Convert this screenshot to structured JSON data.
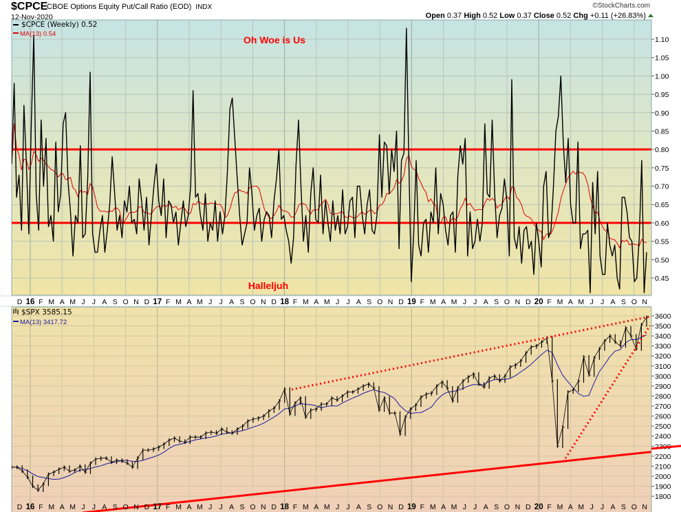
{
  "header": {
    "symbol": "$CPCE",
    "name": "CBOE Options Equity Put/Call Ratio (EOD)",
    "exchange": "INDX",
    "date": "12-Nov-2020",
    "watermark": "©StockCharts.com",
    "open_label": "Open",
    "open": "0.37",
    "high_label": "High",
    "high": "0.52",
    "low_label": "Low",
    "low": "0.37",
    "close_label": "Close",
    "close": "0.52",
    "chg_label": "Chg",
    "chg": "+0.11 (+26.83%)"
  },
  "colors": {
    "price": "#000000",
    "ma_top": "#e00000",
    "ma_bottom": "#1a1aa0",
    "annotation": "#ff0000"
  },
  "chart_data": [
    {
      "type": "line",
      "title": "$CPCE (Weekly)",
      "legend": [
        "$CPCE (Weekly) 0.52",
        "MA(13) 0.54"
      ],
      "annotations": [
        "Oh Woe is Us",
        "Halleljuh"
      ],
      "horizontal_lines": [
        0.8,
        0.6
      ],
      "ylim": [
        0.4,
        1.14
      ],
      "yticks": [
        "0.45",
        "0.50",
        "0.55",
        "0.60",
        "0.65",
        "0.70",
        "0.75",
        "0.80",
        "0.85",
        "0.90",
        "0.95",
        "1.00",
        "1.05",
        "1.10"
      ],
      "ma_period": 13,
      "series": [
        {
          "name": "$CPCE",
          "values": [
            0.76,
            0.98,
            0.67,
            0.73,
            0.58,
            0.92,
            0.76,
            0.57,
            0.87,
            1.11,
            0.68,
            0.58,
            0.88,
            0.7,
            0.83,
            0.59,
            0.62,
            0.55,
            0.82,
            0.63,
            0.68,
            0.87,
            0.9,
            0.71,
            0.63,
            0.51,
            0.62,
            0.6,
            0.81,
            0.56,
            0.57,
            0.72,
            1.01,
            0.57,
            0.52,
            0.52,
            0.58,
            0.62,
            0.52,
            0.58,
            0.65,
            0.78,
            0.68,
            0.58,
            0.62,
            0.56,
            0.66,
            0.63,
            0.7,
            0.6,
            0.61,
            0.57,
            0.72,
            0.66,
            0.58,
            0.67,
            0.54,
            0.62,
            0.7,
            0.76,
            0.66,
            0.62,
            0.72,
            0.56,
            0.66,
            0.65,
            0.6,
            0.63,
            0.54,
            0.6,
            0.66,
            0.59,
            0.62,
            0.7,
            0.96,
            0.67,
            0.68,
            0.62,
            0.58,
            0.68,
            0.55,
            0.6,
            0.58,
            0.66,
            0.55,
            0.63,
            0.57,
            0.62,
            0.74,
            0.91,
            0.94,
            0.83,
            0.72,
            0.62,
            0.54,
            0.57,
            0.6,
            0.75,
            0.68,
            0.58,
            0.62,
            0.64,
            0.55,
            0.61,
            0.63,
            0.62,
            0.56,
            0.66,
            0.72,
            0.8,
            0.61,
            0.62,
            0.58,
            0.55,
            0.49,
            0.56,
            0.76,
            0.88,
            0.7,
            0.55,
            0.62,
            0.52,
            0.68,
            0.75,
            0.61,
            0.6,
            0.73,
            0.57,
            0.66,
            0.6,
            0.55,
            0.66,
            0.58,
            0.62,
            0.57,
            0.69,
            0.57,
            0.59,
            0.66,
            0.67,
            0.56,
            0.7,
            0.7,
            0.62,
            0.57,
            0.65,
            0.69,
            0.58,
            0.57,
            0.62,
            0.84,
            0.67,
            0.82,
            0.81,
            0.68,
            0.8,
            0.74,
            0.85,
            0.53,
            0.77,
            0.79,
            1.13,
            0.77,
            0.44,
            0.57,
            0.77,
            0.54,
            0.51,
            0.6,
            0.61,
            0.52,
            0.63,
            0.6,
            0.75,
            0.57,
            0.68,
            0.65,
            0.58,
            0.54,
            0.62,
            0.63,
            0.52,
            0.73,
            0.81,
            0.76,
            0.83,
            0.51,
            0.63,
            0.53,
            0.55,
            0.61,
            0.55,
            0.6,
            0.87,
            0.68,
            0.67,
            0.88,
            0.68,
            0.56,
            0.62,
            0.64,
            0.72,
            0.66,
            0.51,
            0.99,
            0.56,
            0.53,
            0.59,
            0.49,
            0.58,
            0.59,
            0.53,
            0.55,
            0.46,
            0.6,
            0.55,
            0.48,
            0.7,
            0.74,
            0.56,
            0.58,
            0.7,
            0.85,
            0.89,
            1.0,
            0.82,
            0.71,
            0.83,
            0.65,
            0.6,
            0.6,
            0.82,
            0.53,
            0.57,
            0.57,
            0.58,
            0.41,
            0.71,
            0.57,
            0.74,
            0.51,
            0.46,
            0.46,
            0.6,
            0.54,
            0.51,
            0.54,
            0.45,
            0.42,
            0.67,
            0.67,
            0.63,
            0.56,
            0.55,
            0.44,
            0.45,
            0.56,
            0.77,
            0.41,
            0.52
          ]
        }
      ]
    },
    {
      "type": "line",
      "title": "$SPX",
      "legend": [
        "$SPX 3585.15",
        "MA(13) 3417.72"
      ],
      "ylim": [
        1750,
        3650
      ],
      "yticks": [
        "1800",
        "1900",
        "2000",
        "2100",
        "2200",
        "2300",
        "2400",
        "2500",
        "2600",
        "2700",
        "2800",
        "2900",
        "3000",
        "3100",
        "3200",
        "3300",
        "3400",
        "3500",
        "3600"
      ],
      "trendlines": [
        {
          "style": "solid",
          "from": [
            "2015-11",
            1740
          ],
          "to": [
            "2020-11",
            2270
          ]
        },
        {
          "style": "dotted",
          "from": [
            "2018-01",
            2870
          ],
          "to": [
            "2020-11",
            3600
          ]
        },
        {
          "style": "dotted",
          "from": [
            "2020-03",
            2200
          ],
          "to": [
            "2020-11",
            3480
          ]
        }
      ],
      "series": [
        {
          "name": "$SPX",
          "values": [
            2090,
            2090,
            2050,
            1990,
            1900,
            1860,
            1920,
            2020,
            2040,
            2070,
            2090,
            2050,
            2060,
            2100,
            2040,
            2130,
            2170,
            2180,
            2180,
            2140,
            2160,
            2150,
            2130,
            2090,
            2180,
            2260,
            2260,
            2270,
            2290,
            2320,
            2360,
            2380,
            2350,
            2340,
            2390,
            2390,
            2390,
            2430,
            2440,
            2430,
            2470,
            2440,
            2430,
            2470,
            2500,
            2550,
            2570,
            2580,
            2600,
            2650,
            2680,
            2750,
            2870,
            2620,
            2730,
            2780,
            2590,
            2660,
            2670,
            2720,
            2720,
            2780,
            2760,
            2800,
            2840,
            2840,
            2870,
            2900,
            2920,
            2880,
            2660,
            2780,
            2630,
            2630,
            2420,
            2590,
            2670,
            2710,
            2790,
            2820,
            2830,
            2900,
            2940,
            2880,
            2750,
            2880,
            2950,
            2990,
            3020,
            2920,
            2890,
            2980,
            3000,
            2950,
            3000,
            3090,
            3110,
            3150,
            3230,
            3290,
            3300,
            3340,
            3380,
            2950,
            2300,
            2490,
            2840,
            2860,
            2950,
            3190,
            3010,
            3180,
            3270,
            3350,
            3400,
            3340,
            3300,
            3480,
            3400,
            3270,
            3510,
            3585.15
          ]
        }
      ]
    }
  ],
  "x_axis_labels": [
    "D",
    "16",
    "F",
    "M",
    "A",
    "M",
    "J",
    "J",
    "A",
    "S",
    "O",
    "N",
    "D",
    "17",
    "F",
    "M",
    "A",
    "M",
    "J",
    "J",
    "A",
    "S",
    "O",
    "N",
    "D",
    "18",
    "F",
    "M",
    "A",
    "M",
    "J",
    "J",
    "A",
    "S",
    "O",
    "N",
    "D",
    "19",
    "F",
    "M",
    "A",
    "M",
    "J",
    "J",
    "A",
    "S",
    "O",
    "N",
    "D",
    "20",
    "F",
    "M",
    "A",
    "M",
    "J",
    "J",
    "A",
    "S",
    "O",
    "N"
  ]
}
